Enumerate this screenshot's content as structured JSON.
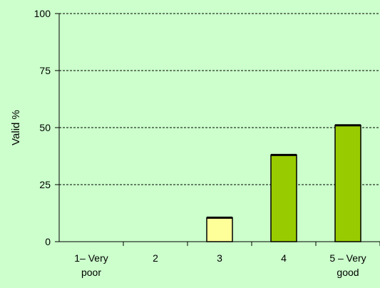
{
  "chart_data": {
    "type": "bar",
    "title": "",
    "xlabel": "",
    "ylabel": "Valid %",
    "ylim": [
      0,
      100
    ],
    "yticks": [
      0,
      25,
      50,
      75,
      100
    ],
    "categories": [
      [
        "1– Very",
        "poor"
      ],
      [
        "2"
      ],
      [
        "3"
      ],
      [
        "4"
      ],
      [
        "5 – Very",
        "good"
      ]
    ],
    "values": [
      0,
      0,
      10.5,
      38,
      51
    ],
    "bar_colors": [
      "#99cc00",
      "#99cc00",
      "#ffff99",
      "#99cc00",
      "#99cc00"
    ],
    "grid": "horizontal-dashed",
    "legend": "none",
    "colors": {
      "background": "#ccffcc",
      "axis": "#000000",
      "gridline": "#000000",
      "bar_outline": "#000000"
    }
  }
}
